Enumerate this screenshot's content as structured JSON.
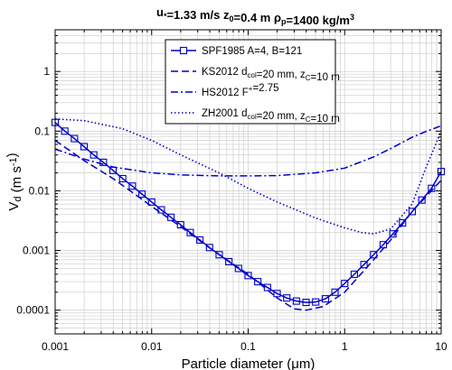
{
  "chart_data": {
    "type": "line",
    "title": "u*=1.33 m/s  z0=0.4 m  ρp=1400 kg/m³",
    "title_parts": [
      {
        "t": "u",
        "s": "base"
      },
      {
        "t": "*",
        "s": "sub"
      },
      {
        "t": "=1.33 m/s  z",
        "s": "base"
      },
      {
        "t": "0",
        "s": "sub"
      },
      {
        "t": "=0.4 m  ρ",
        "s": "base"
      },
      {
        "t": "p",
        "s": "sub"
      },
      {
        "t": "=1400 kg/m",
        "s": "base"
      },
      {
        "t": "3",
        "s": "sup"
      }
    ],
    "xlabel": "Particle diameter (μm)",
    "ylabel": "Vd (m s-1)",
    "ylabel_parts": [
      {
        "t": "V",
        "s": "base"
      },
      {
        "t": "d",
        "s": "sub"
      },
      {
        "t": " (m s",
        "s": "base"
      },
      {
        "t": "-1",
        "s": "sup"
      },
      {
        "t": ")",
        "s": "base"
      }
    ],
    "xscale": "log",
    "yscale": "log",
    "xlim": [
      0.001,
      10
    ],
    "ylim": [
      4e-05,
      5
    ],
    "xticks": [
      0.001,
      0.01,
      0.1,
      1,
      10
    ],
    "xtick_labels": [
      "0.001",
      "0.01",
      "0.1",
      "1",
      "10"
    ],
    "yticks": [
      0.0001,
      0.001,
      0.01,
      0.1,
      1
    ],
    "ytick_labels": [
      "0.0001",
      "0.001",
      "0.01",
      "0.1",
      "1"
    ],
    "grid": true,
    "legend_position": "top-center",
    "color": "#0000cc",
    "series": [
      {
        "name": "SPF1985",
        "legend_parts": [
          {
            "t": "SPF1985  A=4, B=121",
            "s": "base"
          }
        ],
        "style": "solid-square-markers",
        "x": [
          0.001,
          0.001259,
          0.001585,
          0.001995,
          0.002512,
          0.003162,
          0.003981,
          0.005012,
          0.00631,
          0.007943,
          0.01,
          0.01259,
          0.01585,
          0.01995,
          0.02512,
          0.03162,
          0.03981,
          0.05012,
          0.0631,
          0.07943,
          0.1,
          0.1259,
          0.1585,
          0.1995,
          0.2512,
          0.3162,
          0.3981,
          0.5012,
          0.631,
          0.7943,
          1,
          1.259,
          1.585,
          1.995,
          2.512,
          3.162,
          3.981,
          5.012,
          6.31,
          7.943,
          10
        ],
        "y": [
          0.14,
          0.1,
          0.075,
          0.055,
          0.04,
          0.03,
          0.022,
          0.016,
          0.012,
          0.0088,
          0.0065,
          0.0048,
          0.0036,
          0.0027,
          0.002,
          0.0015,
          0.00112,
          0.00085,
          0.00065,
          0.0005,
          0.00038,
          0.0003,
          0.00024,
          0.00019,
          0.00016,
          0.000142,
          0.000135,
          0.000137,
          0.000155,
          0.0002,
          0.00028,
          0.0004,
          0.00058,
          0.00085,
          0.00125,
          0.0019,
          0.0029,
          0.0045,
          0.007,
          0.011,
          0.021
        ]
      },
      {
        "name": "KS2012",
        "legend_parts": [
          {
            "t": "KS2012     d",
            "s": "base"
          },
          {
            "t": "col",
            "s": "sub"
          },
          {
            "t": "=20 mm, z",
            "s": "base"
          },
          {
            "t": "C",
            "s": "sub"
          },
          {
            "t": "=10 m",
            "s": "base"
          }
        ],
        "style": "dashed",
        "x": [
          0.001,
          0.002,
          0.004,
          0.01,
          0.02,
          0.04,
          0.1,
          0.2,
          0.3,
          0.4,
          0.6,
          1,
          2,
          3,
          5,
          10
        ],
        "y": [
          0.07,
          0.032,
          0.016,
          0.0055,
          0.0025,
          0.0011,
          0.0004,
          0.00016,
          0.000105,
          0.0001,
          0.000115,
          0.0002,
          0.0007,
          0.0015,
          0.0045,
          0.015
        ]
      },
      {
        "name": "HS2012",
        "legend_parts": [
          {
            "t": "HS2012     F",
            "s": "base"
          },
          {
            "t": "+",
            "s": "sup"
          },
          {
            "t": "=2.75",
            "s": "base"
          }
        ],
        "style": "dash-dot",
        "x": [
          0.001,
          0.002,
          0.004,
          0.01,
          0.02,
          0.05,
          0.1,
          0.2,
          0.5,
          1,
          2,
          3,
          5,
          7,
          10
        ],
        "y": [
          0.05,
          0.034,
          0.025,
          0.02,
          0.0185,
          0.0178,
          0.0178,
          0.018,
          0.02,
          0.024,
          0.037,
          0.051,
          0.079,
          0.099,
          0.123
        ]
      },
      {
        "name": "ZH2001",
        "legend_parts": [
          {
            "t": "ZH2001     d",
            "s": "base"
          },
          {
            "t": "col",
            "s": "sub"
          },
          {
            "t": "=20 mm, z",
            "s": "base"
          },
          {
            "t": "C",
            "s": "sub"
          },
          {
            "t": "=10 m",
            "s": "base"
          }
        ],
        "style": "dotted",
        "x": [
          0.001,
          0.002,
          0.005,
          0.01,
          0.02,
          0.05,
          0.1,
          0.2,
          0.5,
          1,
          1.5,
          2,
          3,
          5,
          7,
          10
        ],
        "y": [
          0.16,
          0.15,
          0.11,
          0.07,
          0.04,
          0.02,
          0.011,
          0.0065,
          0.0035,
          0.0024,
          0.002,
          0.0019,
          0.0023,
          0.006,
          0.025,
          0.1
        ]
      }
    ]
  }
}
